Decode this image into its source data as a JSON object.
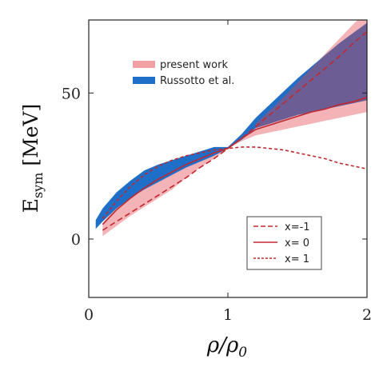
{
  "chart_data": {
    "type": "area",
    "xlabel": {
      "main": "ρ/ρ",
      "sub": "0"
    },
    "ylabel": {
      "main": "E",
      "sub": "sym",
      "unit": " [MeV]"
    },
    "xlim": [
      0,
      2
    ],
    "ylim": [
      -20,
      75
    ],
    "xticks": [
      0,
      1,
      2
    ],
    "yticks": [
      0,
      50
    ],
    "grid": false,
    "legends": [
      {
        "placement": "upper-left",
        "entries": [
          {
            "label": "present work",
            "color": "#f1a0a4"
          },
          {
            "label": "Russotto et al.",
            "color": "#1f6fc8"
          }
        ]
      },
      {
        "placement": "lower-right",
        "entries": [
          {
            "label": "x=-1",
            "style": "long-dash",
            "color": "#c0282f"
          },
          {
            "label": "x= 0",
            "style": "solid",
            "color": "#c0282f"
          },
          {
            "label": "x= 1",
            "style": "short-dash",
            "color": "#c0282f"
          }
        ]
      }
    ],
    "bands": [
      {
        "name": "present work",
        "color": "#f1a0a4",
        "opacity": 0.8,
        "x": [
          0.1,
          0.2,
          0.3,
          0.4,
          0.5,
          0.6,
          0.7,
          0.8,
          0.9,
          1.0,
          1.1,
          1.2,
          1.3,
          1.4,
          1.5,
          1.6,
          1.7,
          1.8,
          1.9,
          2.0
        ],
        "lower": [
          1.0,
          4.5,
          8.0,
          11.0,
          14.0,
          17.0,
          21.0,
          24.5,
          27.5,
          31.0,
          33.5,
          35.5,
          36.5,
          37.5,
          38.5,
          39.5,
          40.5,
          41.5,
          42.5,
          43.5
        ],
        "upper": [
          5.5,
          11.0,
          15.5,
          19.0,
          22.0,
          24.5,
          26.5,
          28.5,
          30.0,
          31.0,
          35.0,
          39.5,
          44.0,
          48.5,
          53.5,
          58.5,
          63.5,
          68.5,
          73.5,
          78.0
        ]
      },
      {
        "name": "Russotto et al.",
        "color": "#1f6fc8",
        "opacity": 1,
        "x": [
          0.05,
          0.1,
          0.2,
          0.3,
          0.4,
          0.5,
          0.6,
          0.7,
          0.8,
          0.9,
          1.0,
          1.1,
          1.2,
          1.3,
          1.4,
          1.5,
          1.6,
          1.7,
          1.8,
          1.9,
          2.0
        ],
        "lower": [
          3.5,
          6.0,
          10.5,
          14.0,
          17.0,
          19.5,
          22.0,
          24.5,
          26.5,
          28.5,
          31.0,
          34.0,
          38.0,
          39.5,
          41.0,
          42.5,
          43.5,
          44.5,
          45.5,
          46.5,
          47.5
        ],
        "upper": [
          6.5,
          10.5,
          16.0,
          20.0,
          23.5,
          25.5,
          27.0,
          28.5,
          30.0,
          31.5,
          31.5,
          36.0,
          41.5,
          46.0,
          50.5,
          55.0,
          59.0,
          63.0,
          67.0,
          70.5,
          74.0
        ]
      }
    ],
    "overlap": {
      "name": "overlap",
      "color": "#7a5a8c",
      "opacity": 0.85,
      "x": [
        1.2,
        1.3,
        1.4,
        1.5,
        1.6,
        1.7,
        1.8,
        1.9,
        2.0
      ],
      "lower": [
        38.0,
        39.5,
        41.0,
        42.5,
        43.5,
        44.5,
        45.5,
        46.5,
        47.5
      ],
      "upper": [
        39.5,
        44.0,
        48.5,
        53.5,
        58.5,
        63.0,
        67.0,
        70.5,
        74.0
      ]
    },
    "series": [
      {
        "name": "x=-1",
        "style": "long-dash",
        "color": "#c0282f",
        "x": [
          0.1,
          0.2,
          0.3,
          0.4,
          0.5,
          0.6,
          0.7,
          0.8,
          0.9,
          1.0,
          1.1,
          1.2,
          1.3,
          1.4,
          1.5,
          1.6,
          1.7,
          1.8,
          1.9,
          2.0
        ],
        "y": [
          3.0,
          6.0,
          9.0,
          12.0,
          15.0,
          18.0,
          21.0,
          24.5,
          27.5,
          31.0,
          34.5,
          38.5,
          42.5,
          46.5,
          50.5,
          54.5,
          58.5,
          62.5,
          67.0,
          71.0
        ]
      },
      {
        "name": "x= 0",
        "style": "solid",
        "color": "#c0282f",
        "x": [
          0.1,
          0.2,
          0.3,
          0.4,
          0.5,
          0.6,
          0.7,
          0.8,
          0.9,
          1.0,
          1.1,
          1.2,
          1.3,
          1.4,
          1.5,
          1.6,
          1.7,
          1.8,
          1.9,
          2.0
        ],
        "y": [
          5.0,
          10.0,
          14.0,
          17.5,
          20.5,
          23.0,
          25.5,
          27.5,
          29.5,
          31.0,
          34.5,
          37.5,
          39.0,
          40.5,
          42.0,
          43.5,
          44.5,
          46.0,
          47.0,
          48.5
        ]
      },
      {
        "name": "x= 1",
        "style": "short-dash",
        "color": "#c0282f",
        "x": [
          0.1,
          0.2,
          0.3,
          0.4,
          0.5,
          0.6,
          0.7,
          0.8,
          0.9,
          1.0,
          1.1,
          1.2,
          1.3,
          1.4,
          1.5,
          1.6,
          1.7,
          1.8,
          1.9,
          2.0
        ],
        "y": [
          7.0,
          13.0,
          18.0,
          22.0,
          25.0,
          27.0,
          28.5,
          29.5,
          30.5,
          31.0,
          31.5,
          31.5,
          31.0,
          30.5,
          29.5,
          28.5,
          27.5,
          26.0,
          25.0,
          24.0
        ]
      }
    ]
  }
}
